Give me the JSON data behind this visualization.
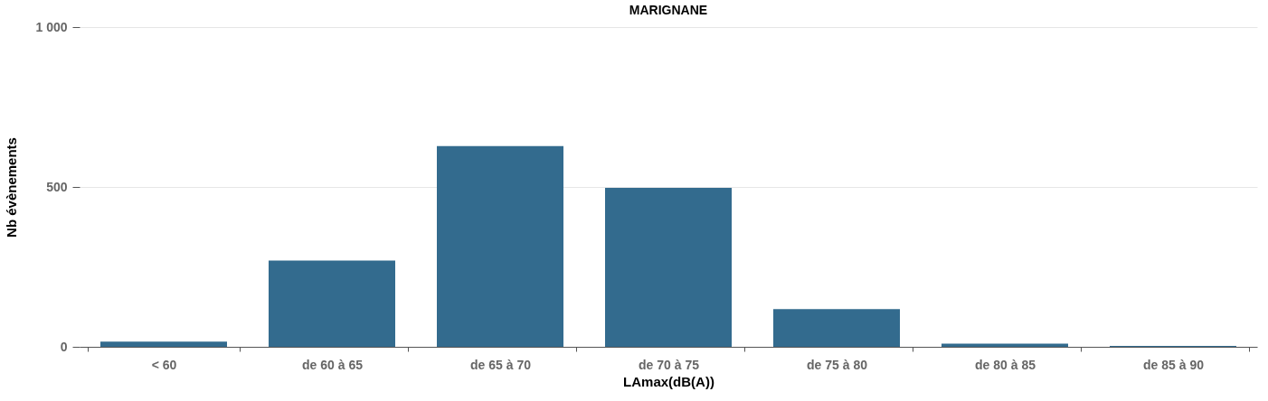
{
  "chart_data": {
    "type": "bar",
    "title": "MARIGNANE",
    "xlabel": "LAmax(dB(A))",
    "ylabel": "Nb évènements",
    "categories": [
      "< 60",
      "de 60 à 65",
      "de 65 à 70",
      "de 70 à 75",
      "de 75 à 80",
      "de 80 à 85",
      "de 85 à 90"
    ],
    "values": [
      16,
      270,
      628,
      497,
      118,
      10,
      3
    ],
    "color": "#336b8e",
    "ylim": [
      0,
      1000
    ],
    "yticks": [
      0,
      500,
      {
        "value": 1000,
        "label": "1 000"
      }
    ],
    "grid": "y"
  }
}
